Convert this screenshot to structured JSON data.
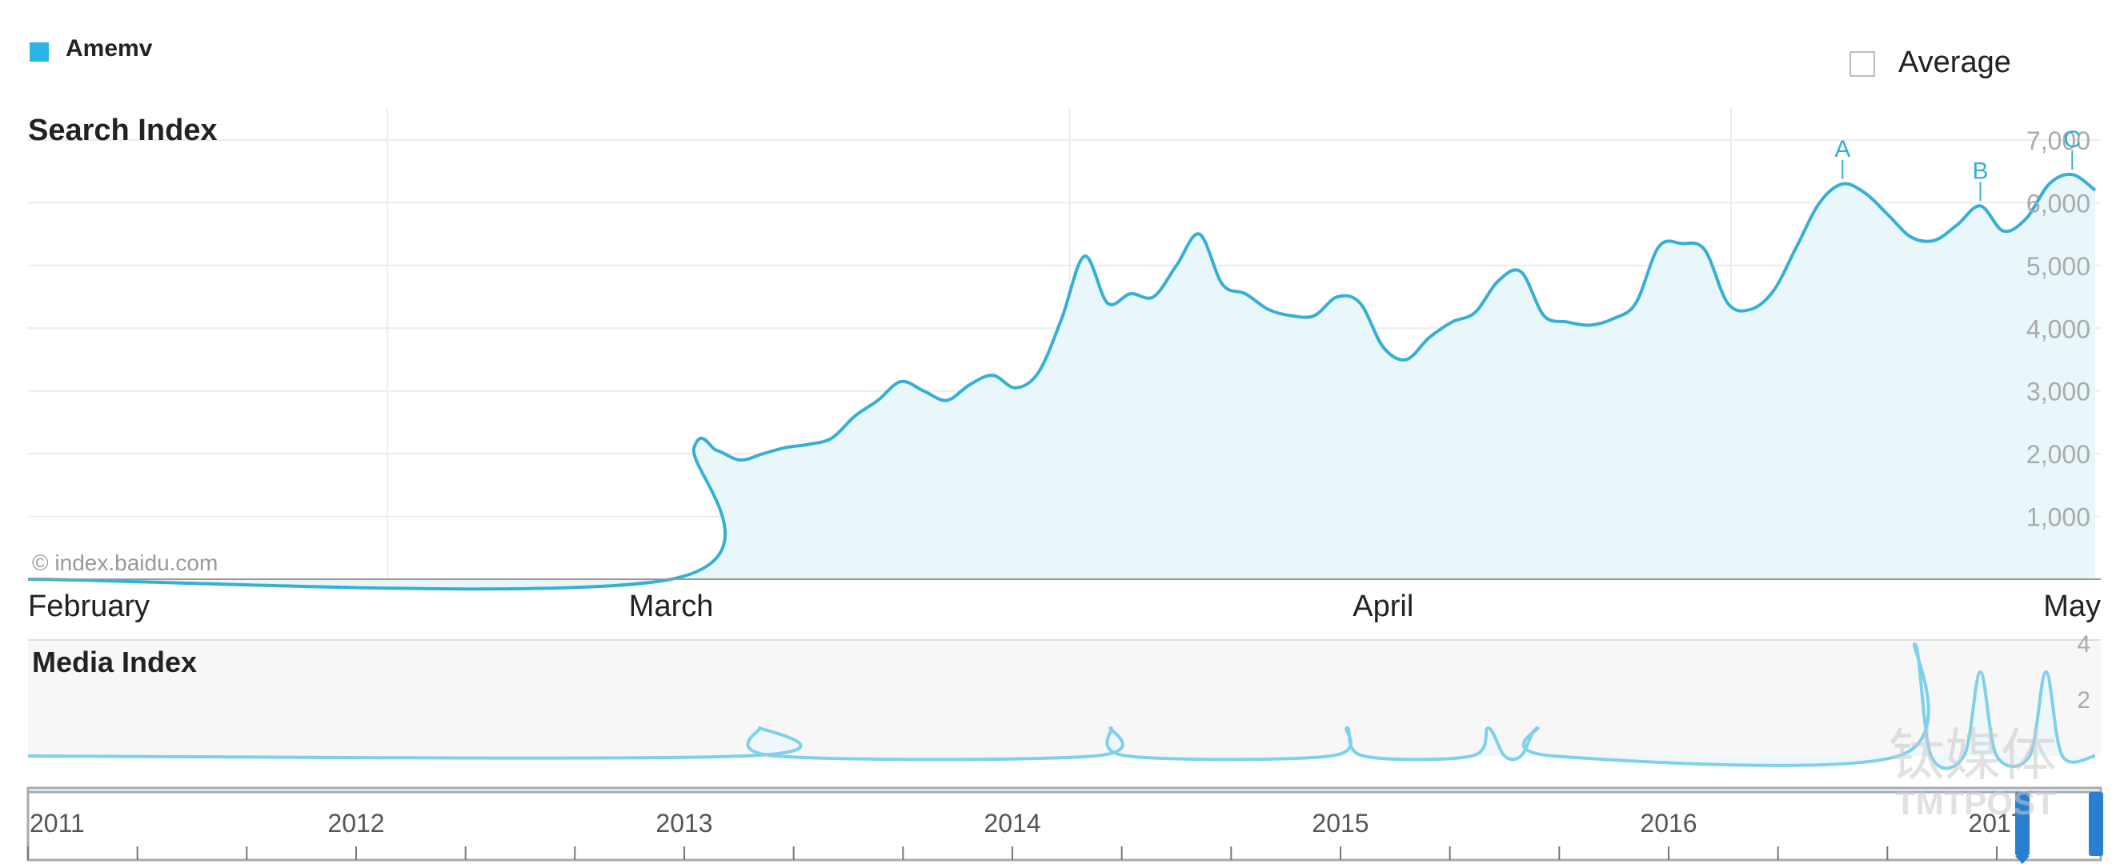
{
  "legend": {
    "series_name": "Amemv",
    "series_color": "#29b6e6",
    "average_label": "Average",
    "average_checked": false
  },
  "watermark": "© index.baidu.com",
  "chart_data": [
    {
      "type": "area",
      "title": "Search Index",
      "series_name": "Amemv",
      "color": "#36afd4",
      "fill": "#e9f7fb",
      "ylim": [
        0,
        7000
      ],
      "yticks": [
        "1,000",
        "2,000",
        "3,000",
        "4,000",
        "5,000",
        "6,000",
        "7,000"
      ],
      "grid": true,
      "x_range": [
        0,
        90
      ],
      "month_labels": [
        {
          "label": "February",
          "x": 0
        },
        {
          "label": "March",
          "x": 28
        },
        {
          "label": "April",
          "x": 59
        },
        {
          "label": "May",
          "x": 89
        }
      ],
      "annotations": [
        {
          "label": "A",
          "x": 79
        },
        {
          "label": "B",
          "x": 85
        },
        {
          "label": "C",
          "x": 89
        }
      ],
      "x": [
        0,
        28,
        29,
        30,
        31,
        32,
        33,
        34,
        35,
        36,
        37,
        38,
        39,
        40,
        41,
        42,
        43,
        44,
        45,
        46,
        47,
        48,
        49,
        50,
        51,
        52,
        53,
        54,
        55,
        56,
        57,
        58,
        59,
        60,
        61,
        62,
        63,
        64,
        65,
        66,
        67,
        68,
        69,
        70,
        71,
        72,
        73,
        74,
        75,
        76,
        77,
        78,
        79,
        80,
        81,
        82,
        83,
        84,
        85,
        86,
        87,
        88,
        89,
        90
      ],
      "values": [
        0,
        0,
        2100,
        2050,
        1900,
        2000,
        2100,
        2150,
        2250,
        2600,
        2850,
        3150,
        3000,
        2850,
        3100,
        3250,
        3050,
        3300,
        4150,
        5150,
        4400,
        4550,
        4500,
        5000,
        5500,
        4700,
        4550,
        4300,
        4200,
        4200,
        4500,
        4400,
        3700,
        3500,
        3850,
        4100,
        4250,
        4750,
        4900,
        4200,
        4100,
        4050,
        4150,
        4400,
        5300,
        5350,
        5250,
        4400,
        4300,
        4600,
        5300,
        6000,
        6300,
        6150,
        5800,
        5450,
        5400,
        5650,
        5950,
        5550,
        5750,
        6300,
        6450,
        6200
      ]
    },
    {
      "type": "area",
      "title": "Media Index",
      "color": "#7fd0ea",
      "ylim": [
        0,
        4
      ],
      "yticks": [
        "2",
        "4"
      ],
      "spikes": [
        {
          "x": 2013.23,
          "value": 1
        },
        {
          "x": 2014.3,
          "value": 1
        },
        {
          "x": 2015.02,
          "value": 1
        },
        {
          "x": 2015.45,
          "value": 1
        },
        {
          "x": 2015.6,
          "value": 1
        },
        {
          "x": 2016.75,
          "value": 4
        },
        {
          "x": 2016.95,
          "value": 3
        },
        {
          "x": 2017.15,
          "value": 3
        }
      ],
      "x_range": [
        2011,
        2017.3
      ],
      "year_labels": [
        "2011",
        "2012",
        "2013",
        "2014",
        "2015",
        "2016",
        "2017"
      ]
    }
  ],
  "corner_watermark": {
    "cn": "钛媒体",
    "en": "TMTPOST"
  }
}
